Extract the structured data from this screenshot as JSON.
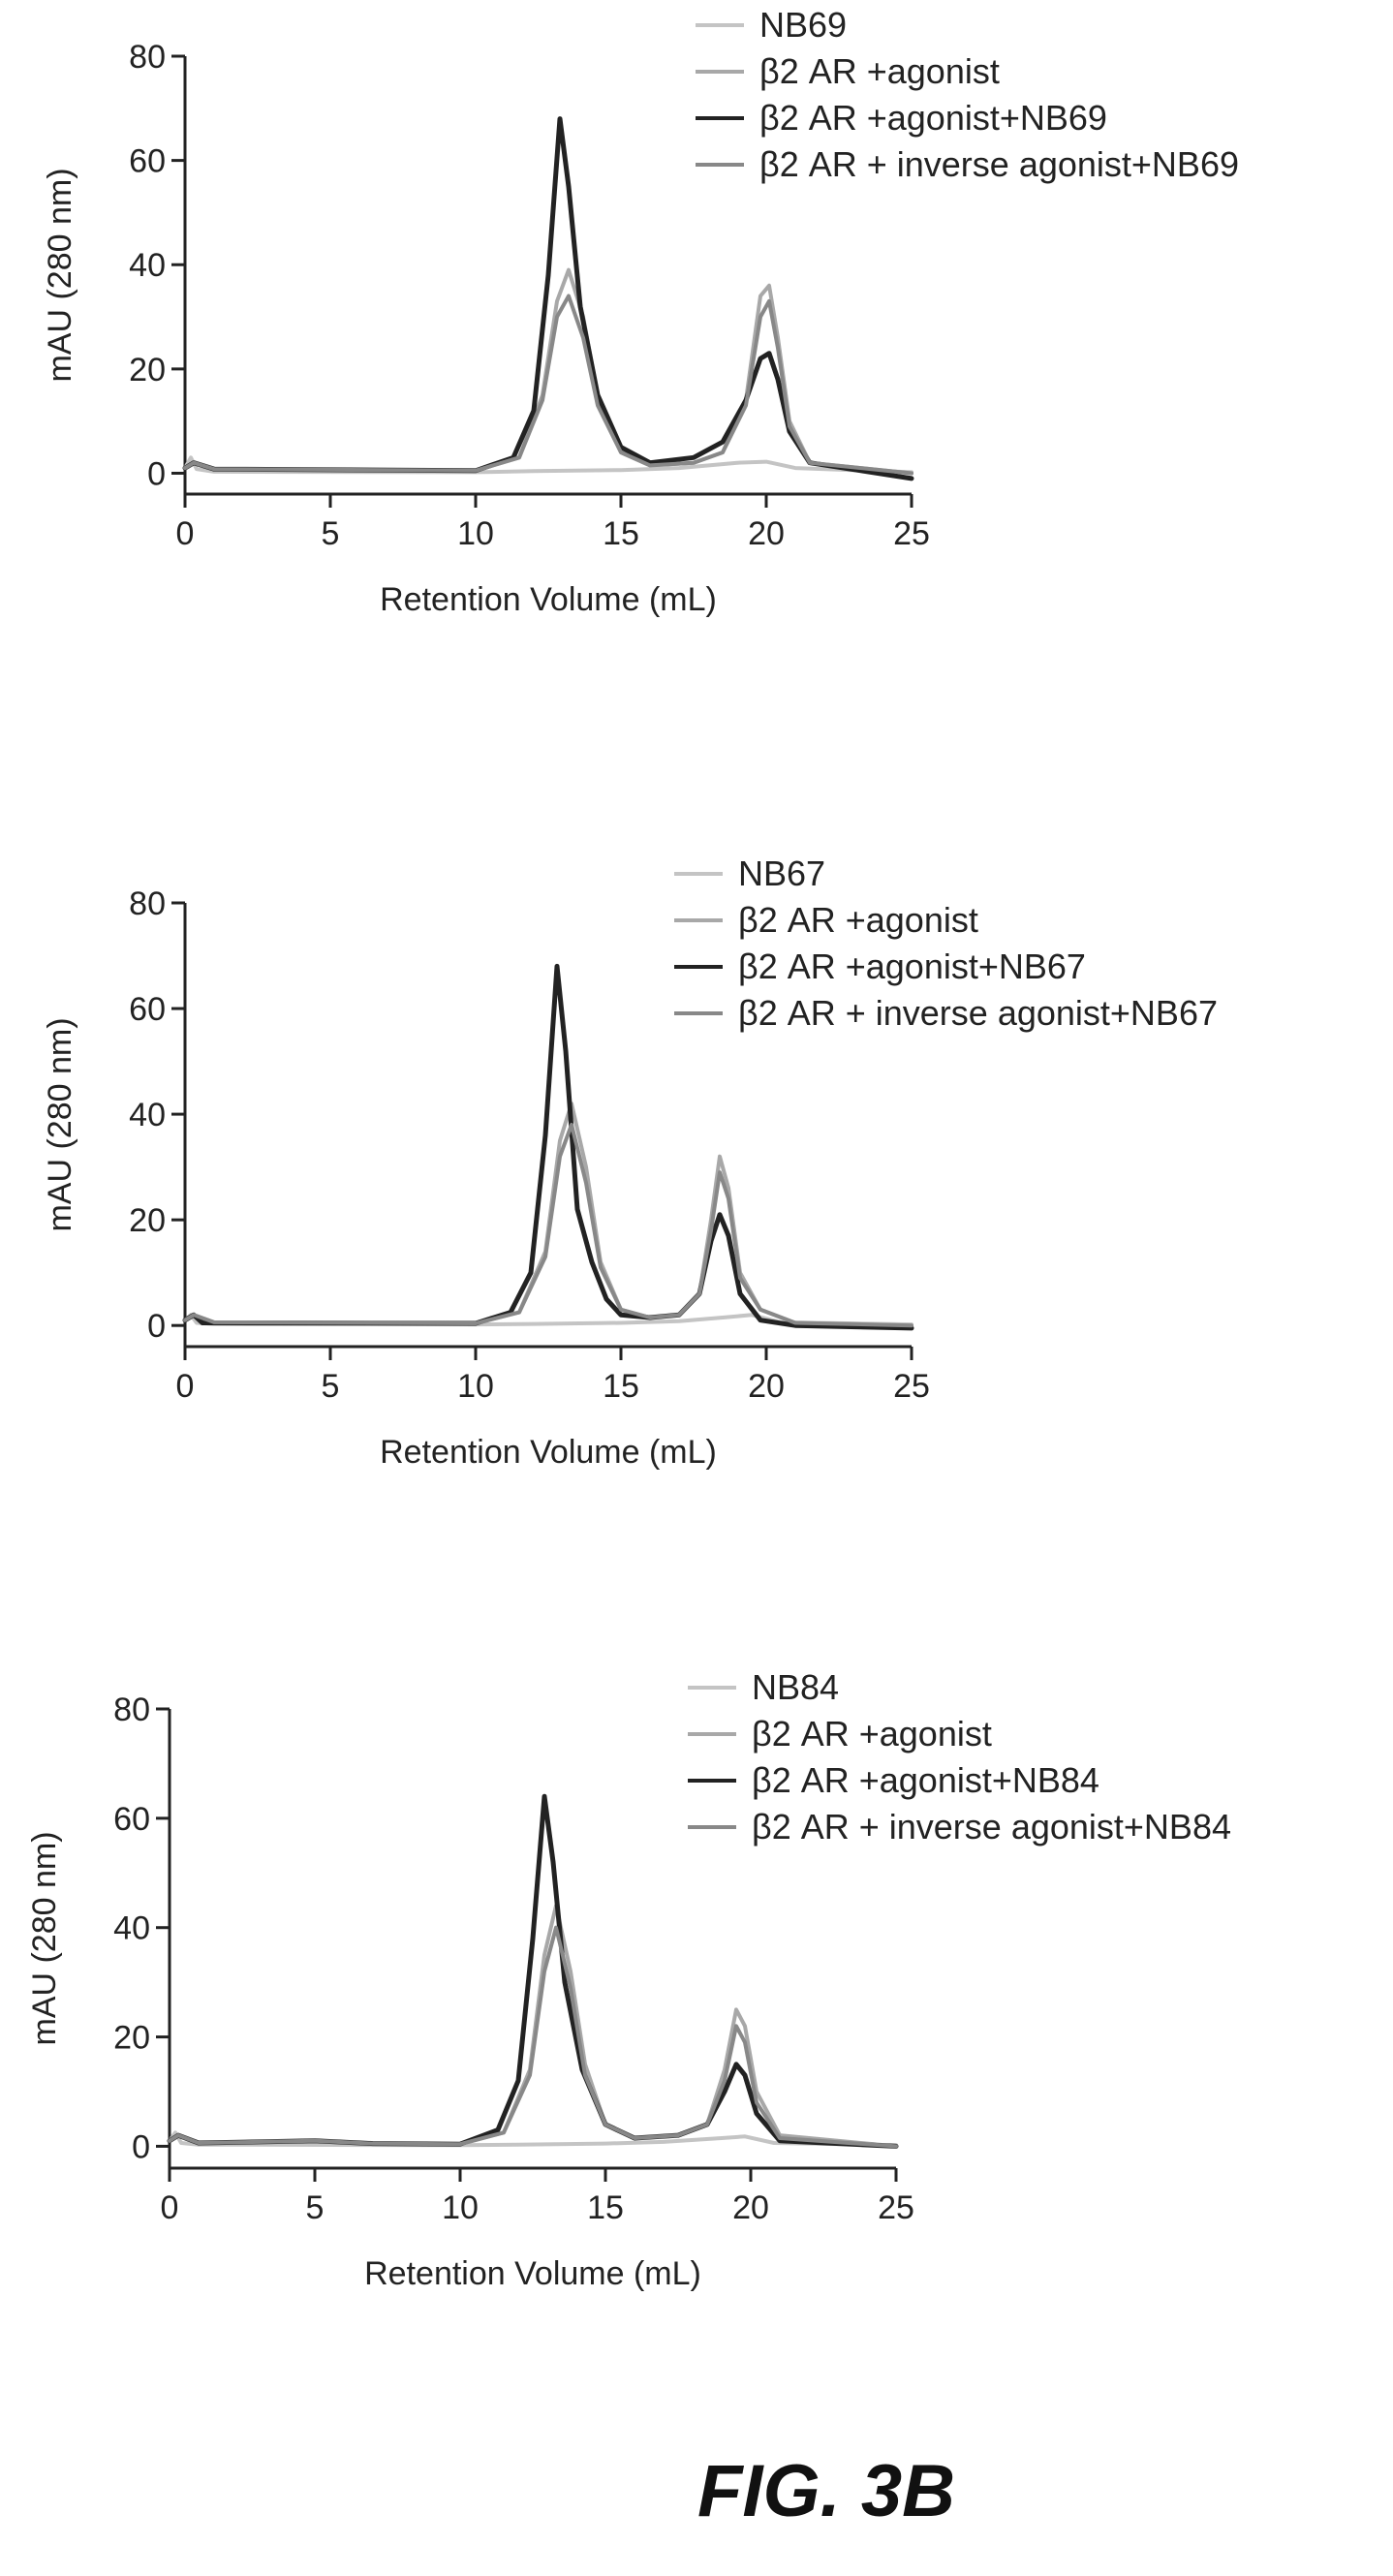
{
  "figure_label": "FIG. 3B",
  "chart_data": [
    {
      "type": "line",
      "xlabel": "Retention Volume (mL)",
      "ylabel": "mAU (280 nm)",
      "xlim": [
        0,
        25
      ],
      "ylim": [
        -4,
        80
      ],
      "x_ticks": [
        0,
        5,
        10,
        15,
        20,
        25
      ],
      "y_ticks": [
        0,
        20,
        40,
        60,
        80
      ],
      "grid": false,
      "legend_position": "top-right",
      "series": [
        {
          "name": "NB69",
          "color": "#c4c4c4",
          "points": [
            [
              0,
              1
            ],
            [
              0.2,
              3
            ],
            [
              0.4,
              0.8
            ],
            [
              1,
              0.3
            ],
            [
              10,
              0.2
            ],
            [
              12,
              0.4
            ],
            [
              15,
              0.6
            ],
            [
              17,
              1
            ],
            [
              19,
              2
            ],
            [
              20,
              2.2
            ],
            [
              21,
              1
            ],
            [
              25,
              0.2
            ]
          ]
        },
        {
          "name": "β2 AR +agonist",
          "color": "#a8a8a8",
          "points": [
            [
              0,
              1
            ],
            [
              0.3,
              2
            ],
            [
              1,
              0.8
            ],
            [
              10,
              0.5
            ],
            [
              11.5,
              3
            ],
            [
              12.3,
              15
            ],
            [
              12.8,
              33
            ],
            [
              13.2,
              39
            ],
            [
              13.7,
              30
            ],
            [
              14.2,
              15
            ],
            [
              15,
              4
            ],
            [
              16,
              1.5
            ],
            [
              17.5,
              2
            ],
            [
              18.5,
              4
            ],
            [
              19.3,
              14
            ],
            [
              19.8,
              34
            ],
            [
              20.1,
              36
            ],
            [
              20.4,
              26
            ],
            [
              20.8,
              10
            ],
            [
              21.5,
              2
            ],
            [
              25,
              0
            ]
          ]
        },
        {
          "name": "β2 AR +agonist+NB69",
          "color": "#222222",
          "points": [
            [
              0,
              1
            ],
            [
              0.3,
              2
            ],
            [
              1,
              0.8
            ],
            [
              10,
              0.5
            ],
            [
              11.3,
              3
            ],
            [
              12,
              12
            ],
            [
              12.5,
              38
            ],
            [
              12.9,
              68
            ],
            [
              13.2,
              55
            ],
            [
              13.6,
              32
            ],
            [
              14.2,
              15
            ],
            [
              15,
              5
            ],
            [
              16,
              2
            ],
            [
              17.5,
              3
            ],
            [
              18.5,
              6
            ],
            [
              19.3,
              14
            ],
            [
              19.8,
              22
            ],
            [
              20.1,
              23
            ],
            [
              20.4,
              18
            ],
            [
              20.8,
              8
            ],
            [
              21.5,
              2
            ],
            [
              25,
              -1
            ]
          ]
        },
        {
          "name": "β2 AR + inverse agonist+NB69",
          "color": "#888888",
          "points": [
            [
              0,
              1
            ],
            [
              0.3,
              2
            ],
            [
              1,
              0.8
            ],
            [
              10,
              0.5
            ],
            [
              11.5,
              3
            ],
            [
              12.3,
              14
            ],
            [
              12.8,
              30
            ],
            [
              13.2,
              34
            ],
            [
              13.7,
              26
            ],
            [
              14.2,
              13
            ],
            [
              15,
              4
            ],
            [
              16,
              1.5
            ],
            [
              17.5,
              2
            ],
            [
              18.5,
              4
            ],
            [
              19.3,
              13
            ],
            [
              19.8,
              30
            ],
            [
              20.1,
              33
            ],
            [
              20.4,
              24
            ],
            [
              20.8,
              9
            ],
            [
              21.5,
              2
            ],
            [
              25,
              0
            ]
          ]
        }
      ]
    },
    {
      "type": "line",
      "xlabel": "Retention Volume (mL)",
      "ylabel": "mAU (280 nm)",
      "xlim": [
        0,
        25
      ],
      "ylim": [
        -4,
        80
      ],
      "x_ticks": [
        0,
        5,
        10,
        15,
        20,
        25
      ],
      "y_ticks": [
        0,
        20,
        40,
        60,
        80
      ],
      "grid": false,
      "legend_position": "top-right",
      "series": [
        {
          "name": "NB67",
          "color": "#c4c4c4",
          "points": [
            [
              0,
              1
            ],
            [
              0.2,
              2
            ],
            [
              0.4,
              0.5
            ],
            [
              1,
              0.3
            ],
            [
              10,
              0.2
            ],
            [
              12,
              0.3
            ],
            [
              15,
              0.5
            ],
            [
              17,
              0.8
            ],
            [
              18.5,
              1.5
            ],
            [
              19.5,
              2
            ],
            [
              20.5,
              0.6
            ],
            [
              25,
              0.2
            ]
          ]
        },
        {
          "name": "β2 AR +agonist",
          "color": "#a8a8a8",
          "points": [
            [
              0,
              1
            ],
            [
              0.3,
              2
            ],
            [
              1,
              0.6
            ],
            [
              10,
              0.4
            ],
            [
              11.5,
              2.5
            ],
            [
              12.4,
              14
            ],
            [
              12.9,
              35
            ],
            [
              13.3,
              42
            ],
            [
              13.8,
              30
            ],
            [
              14.3,
              12
            ],
            [
              15,
              3
            ],
            [
              16,
              1.5
            ],
            [
              17,
              2
            ],
            [
              17.7,
              6
            ],
            [
              18.1,
              20
            ],
            [
              18.4,
              32
            ],
            [
              18.7,
              26
            ],
            [
              19.1,
              10
            ],
            [
              19.8,
              3
            ],
            [
              21,
              0.5
            ],
            [
              25,
              0
            ]
          ]
        },
        {
          "name": "β2 AR +agonist+NB67",
          "color": "#222222",
          "points": [
            [
              0,
              1
            ],
            [
              0.3,
              2
            ],
            [
              0.6,
              0.5
            ],
            [
              10,
              0.4
            ],
            [
              11.2,
              2.5
            ],
            [
              11.9,
              10
            ],
            [
              12.4,
              36
            ],
            [
              12.8,
              68
            ],
            [
              13.1,
              52
            ],
            [
              13.5,
              22
            ],
            [
              14,
              12
            ],
            [
              14.5,
              5
            ],
            [
              15,
              2
            ],
            [
              16,
              1.5
            ],
            [
              17,
              2
            ],
            [
              17.7,
              6
            ],
            [
              18.1,
              16
            ],
            [
              18.4,
              21
            ],
            [
              18.7,
              17
            ],
            [
              19.1,
              6
            ],
            [
              19.8,
              1
            ],
            [
              21,
              0
            ],
            [
              25,
              -0.5
            ]
          ]
        },
        {
          "name": "β2 AR + inverse agonist+NB67",
          "color": "#888888",
          "points": [
            [
              0,
              1
            ],
            [
              0.3,
              2
            ],
            [
              1,
              0.6
            ],
            [
              10,
              0.4
            ],
            [
              11.5,
              2.5
            ],
            [
              12.4,
              13
            ],
            [
              12.9,
              32
            ],
            [
              13.3,
              38
            ],
            [
              13.8,
              27
            ],
            [
              14.3,
              11
            ],
            [
              15,
              3
            ],
            [
              16,
              1.5
            ],
            [
              17,
              2
            ],
            [
              17.7,
              6
            ],
            [
              18.1,
              18
            ],
            [
              18.4,
              29
            ],
            [
              18.7,
              24
            ],
            [
              19.1,
              9
            ],
            [
              19.8,
              3
            ],
            [
              21,
              0.5
            ],
            [
              25,
              0
            ]
          ]
        }
      ]
    },
    {
      "type": "line",
      "xlabel": "Retention Volume (mL)",
      "ylabel": "mAU (280 nm)",
      "xlim": [
        0,
        25
      ],
      "ylim": [
        -4,
        80
      ],
      "x_ticks": [
        0,
        5,
        10,
        15,
        20,
        25
      ],
      "y_ticks": [
        0,
        20,
        40,
        60,
        80
      ],
      "grid": false,
      "legend_position": "top-right",
      "series": [
        {
          "name": "NB84",
          "color": "#c4c4c4",
          "points": [
            [
              0,
              1
            ],
            [
              0.2,
              2.5
            ],
            [
              0.4,
              0.6
            ],
            [
              1,
              0.3
            ],
            [
              10,
              0.2
            ],
            [
              12,
              0.3
            ],
            [
              15,
              0.5
            ],
            [
              17,
              0.8
            ],
            [
              19,
              1.5
            ],
            [
              19.8,
              1.8
            ],
            [
              20.8,
              0.6
            ],
            [
              25,
              0.2
            ]
          ]
        },
        {
          "name": "β2 AR +agonist",
          "color": "#a8a8a8",
          "points": [
            [
              0,
              1
            ],
            [
              0.3,
              2
            ],
            [
              1,
              0.6
            ],
            [
              5,
              1
            ],
            [
              7,
              0.5
            ],
            [
              10,
              0.4
            ],
            [
              11.5,
              2.5
            ],
            [
              12.4,
              14
            ],
            [
              12.9,
              35
            ],
            [
              13.3,
              44
            ],
            [
              13.8,
              32
            ],
            [
              14.3,
              15
            ],
            [
              15,
              4
            ],
            [
              16,
              1.5
            ],
            [
              17.5,
              2
            ],
            [
              18.5,
              4
            ],
            [
              19.1,
              14
            ],
            [
              19.5,
              25
            ],
            [
              19.8,
              22
            ],
            [
              20.2,
              10
            ],
            [
              21,
              2
            ],
            [
              25,
              0
            ]
          ]
        },
        {
          "name": "β2 AR +agonist+NB84",
          "color": "#222222",
          "points": [
            [
              0,
              1
            ],
            [
              0.3,
              2
            ],
            [
              1,
              0.6
            ],
            [
              5,
              1
            ],
            [
              7,
              0.5
            ],
            [
              10,
              0.4
            ],
            [
              11.3,
              3
            ],
            [
              12,
              12
            ],
            [
              12.5,
              38
            ],
            [
              12.9,
              64
            ],
            [
              13.2,
              52
            ],
            [
              13.6,
              30
            ],
            [
              14.2,
              14
            ],
            [
              15,
              4
            ],
            [
              16,
              1.5
            ],
            [
              17.5,
              2
            ],
            [
              18.5,
              4
            ],
            [
              19.1,
              10
            ],
            [
              19.5,
              15
            ],
            [
              19.8,
              13
            ],
            [
              20.2,
              6
            ],
            [
              21,
              1
            ],
            [
              25,
              0
            ]
          ]
        },
        {
          "name": "β2 AR + inverse agonist+NB84",
          "color": "#888888",
          "points": [
            [
              0,
              1
            ],
            [
              0.3,
              2
            ],
            [
              1,
              0.6
            ],
            [
              5,
              1
            ],
            [
              7,
              0.5
            ],
            [
              10,
              0.4
            ],
            [
              11.5,
              2.5
            ],
            [
              12.4,
              13
            ],
            [
              12.9,
              32
            ],
            [
              13.3,
              40
            ],
            [
              13.8,
              29
            ],
            [
              14.3,
              13
            ],
            [
              15,
              4
            ],
            [
              16,
              1.5
            ],
            [
              17.5,
              2
            ],
            [
              18.5,
              4
            ],
            [
              19.1,
              12
            ],
            [
              19.5,
              22
            ],
            [
              19.8,
              19
            ],
            [
              20.2,
              8
            ],
            [
              21,
              1.5
            ],
            [
              25,
              0
            ]
          ]
        }
      ]
    }
  ]
}
